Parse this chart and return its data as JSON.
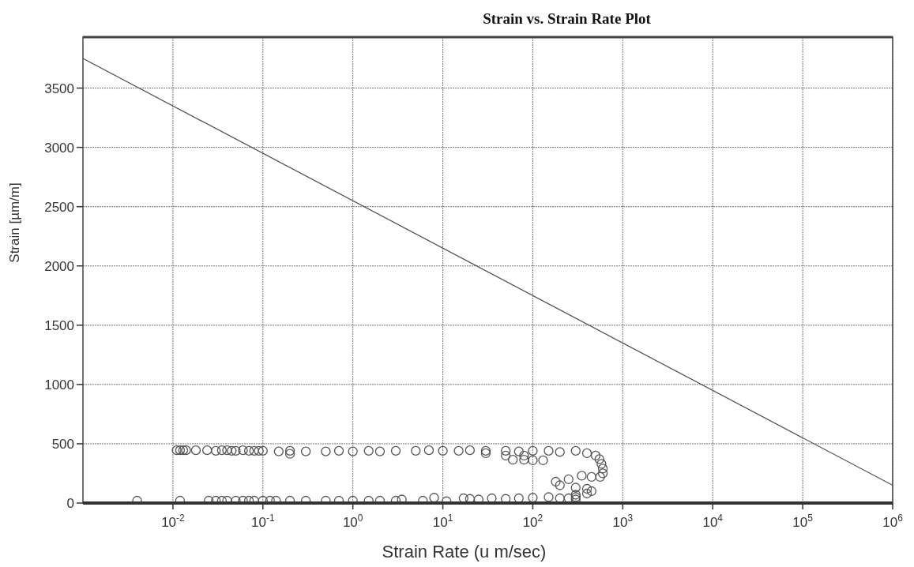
{
  "chart_data": {
    "type": "scatter",
    "title": "Strain vs. Strain Rate Plot",
    "xlabel": "Strain Rate (u m/sec)",
    "ylabel": "Strain [µm/m]",
    "log": "x",
    "grid": true,
    "xlim": [
      0.001,
      1000000
    ],
    "xticks": [
      {
        "value": 0.01,
        "label": "10$^{-2}$"
      },
      {
        "value": 0.1,
        "label": "10$^{-1}$"
      },
      {
        "value": 1,
        "label": "10$^{0}$"
      },
      {
        "value": 10,
        "label": "10$^{1}$"
      },
      {
        "value": 100,
        "label": "10$^{2}$"
      },
      {
        "value": 1000,
        "label": "10$^{3}$"
      },
      {
        "value": 10000,
        "label": "10$^{4}$"
      },
      {
        "value": 100000,
        "label": "10$^{5}$"
      },
      {
        "value": 1000000,
        "label": "10$^{6}$"
      }
    ],
    "ylim": [
      0,
      3930
    ],
    "yticks": [
      0,
      500,
      1000,
      1500,
      2000,
      2500,
      3000,
      3500
    ],
    "series": [
      {
        "type": "line",
        "color": "#555555",
        "marker": "none",
        "x": [
          0.001,
          1000000
        ],
        "values": [
          3750,
          150
        ]
      },
      {
        "color": "#555555",
        "marker": "circle",
        "x": [
          0.011,
          0.012,
          0.013,
          0.014,
          0.018,
          0.024,
          0.03,
          0.035,
          0.04,
          0.045,
          0.05,
          0.06,
          0.07,
          0.08,
          0.09,
          0.1,
          0.15,
          0.2,
          0.3,
          0.5,
          0.7,
          1,
          1.5,
          2,
          3,
          5,
          7,
          10,
          15,
          20,
          30,
          50,
          70,
          100,
          150,
          200,
          0.2,
          30,
          50,
          80,
          60,
          80,
          100,
          130,
          300,
          400,
          500,
          550,
          580,
          600,
          600,
          560,
          450,
          350,
          250,
          180,
          200,
          300,
          400,
          450,
          400,
          300,
          300,
          250,
          0.004,
          0.012,
          0.025,
          0.03,
          0.035,
          0.04,
          0.05,
          0.06,
          0.07,
          0.08,
          0.1,
          0.12,
          0.14,
          0.2,
          0.3,
          0.5,
          0.7,
          1,
          1.5,
          2,
          3,
          3.5,
          6,
          8,
          11,
          17,
          20,
          25,
          35,
          50,
          70,
          100,
          150,
          200,
          300
        ],
        "values": [
          445,
          445,
          445,
          445,
          445,
          445,
          440,
          445,
          445,
          440,
          440,
          445,
          440,
          440,
          440,
          440,
          435,
          440,
          435,
          435,
          440,
          435,
          440,
          435,
          440,
          440,
          445,
          440,
          440,
          445,
          440,
          440,
          435,
          440,
          440,
          430,
          415,
          420,
          400,
          400,
          365,
          365,
          360,
          360,
          440,
          420,
          400,
          370,
          330,
          290,
          250,
          220,
          220,
          230,
          200,
          180,
          150,
          130,
          120,
          100,
          80,
          70,
          50,
          40,
          20,
          20,
          20,
          20,
          20,
          20,
          20,
          20,
          20,
          20,
          20,
          20,
          20,
          20,
          20,
          20,
          20,
          20,
          20,
          20,
          20,
          30,
          20,
          45,
          15,
          40,
          35,
          30,
          40,
          35,
          40,
          45,
          50,
          40,
          30
        ]
      }
    ]
  }
}
